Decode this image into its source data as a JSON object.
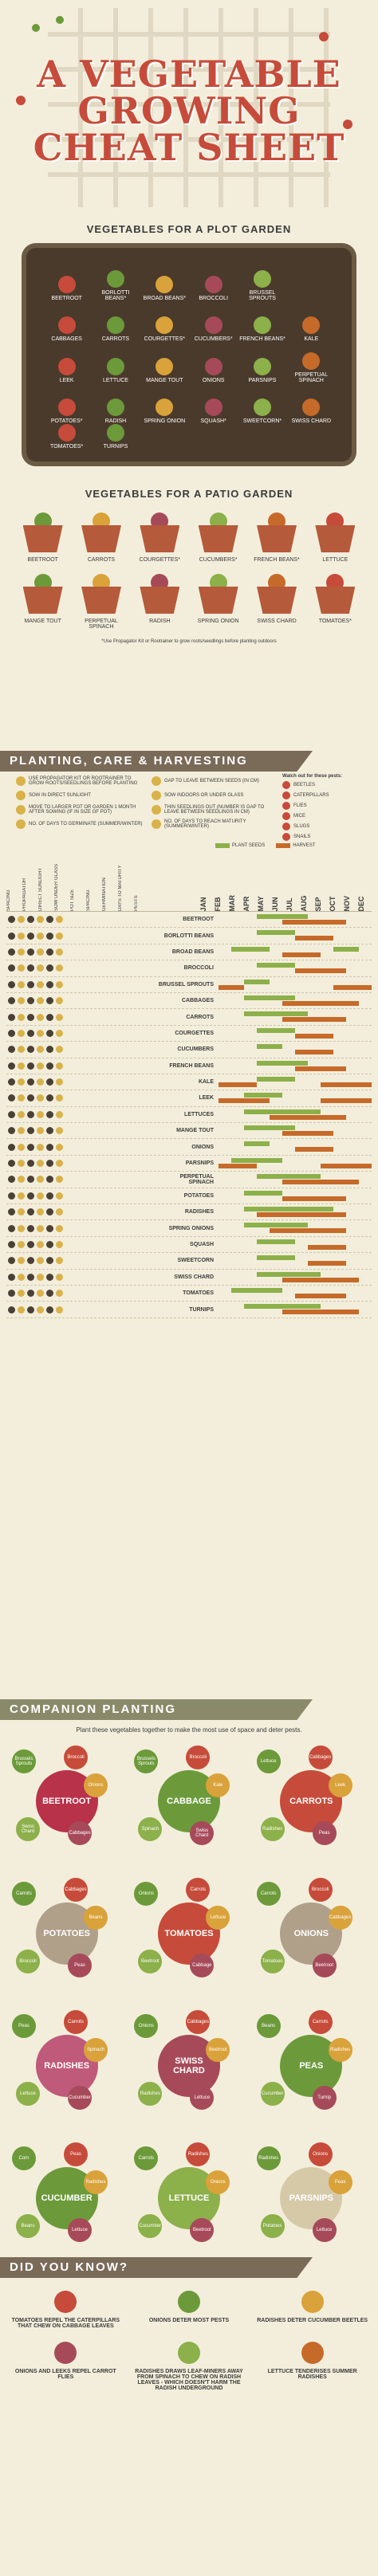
{
  "header": {
    "title_line1": "A VEGETABLE",
    "title_line2": "GROWING",
    "title_line3": "CHEAT SHEET"
  },
  "plot": {
    "title": "VEGETABLES FOR A PLOT GARDEN",
    "items": [
      "BEETROOT",
      "BORLOTTI BEANS*",
      "BROAD BEANS*",
      "BROCCOLI",
      "BRUSSEL SPROUTS",
      "",
      "CABBAGES",
      "CARROTS",
      "COURGETTES*",
      "CUCUMBERS*",
      "FRENCH BEANS*",
      "KALE",
      "LEEK",
      "LETTUCE",
      "MANGE TOUT",
      "ONIONS",
      "PARSNIPS",
      "PERPETUAL SPINACH",
      "POTATOES*",
      "RADISH",
      "SPRING ONION",
      "SQUASH*",
      "SWEETCORN*",
      "SWISS CHARD",
      "TOMATOES*",
      "TURNIPS"
    ]
  },
  "patio": {
    "title": "VEGETABLES FOR A PATIO GARDEN",
    "items": [
      "BEETROOT",
      "CARROTS",
      "COURGETTES*",
      "CUCUMBERS*",
      "FRENCH BEANS*",
      "LETTUCE",
      "MANGE TOUT",
      "PERPETUAL SPINACH",
      "RADISH",
      "SPRING ONION",
      "SWISS CHARD",
      "TOMATOES*"
    ],
    "note": "*Use Propagator Kit or Rootrainer to grow roots/seedlings before planting outdoors"
  },
  "planting": {
    "banner": "PLANTING, CARE & HARVESTING",
    "legend": [
      "USE PROPAGATOR KIT OR ROOTRAINER TO GROW ROOTS/SEEDLINGS BEFORE PLANTING",
      "GAP TO LEAVE BETWEEN SEEDS (IN CM)",
      "SOW IN DIRECT SUNLIGHT",
      "SOW INDOORS OR UNDER GLASS",
      "MOVE TO LARGER POT OR GARDEN 1 MONTH AFTER SOWING (IF IN SIZE OF POT)",
      "THIN SEEDLINGS OUT (NUMBER IS GAP TO LEAVE BETWEEN SEEDLINGS IN CM)",
      "NO. OF DAYS TO GERMINATE (SUMMER/WINTER)",
      "NO. OF DAYS TO REACH MATURITY (SUMMER/WINTER)"
    ],
    "pests_title": "Watch out for these pests:",
    "pests": [
      "BEETLES",
      "CATERPILLARS",
      "FLIES",
      "MICE",
      "SLUGS",
      "SNAILS"
    ],
    "col_headers": [
      "SPACING",
      "PROPAGATOR",
      "DIRECT SUNLIGHT",
      "SOW UNDER GLASS",
      "POT SIZE",
      "SPACING",
      "GERMINATION",
      "DAYS TO MATURITY",
      "PESTS"
    ],
    "months": [
      "JAN",
      "FEB",
      "MAR",
      "APR",
      "MAY",
      "JUN",
      "JUL",
      "AUG",
      "SEP",
      "OCT",
      "NOV",
      "DEC"
    ],
    "key_seeds": "PLANT SEEDS",
    "key_harvest": "HARVEST",
    "rows": [
      {
        "name": "BEETROOT",
        "seed": [
          [
            3,
            7
          ]
        ],
        "harv": [
          [
            5,
            10
          ]
        ]
      },
      {
        "name": "BORLOTTI BEANS",
        "seed": [
          [
            3,
            6
          ]
        ],
        "harv": [
          [
            6,
            9
          ]
        ]
      },
      {
        "name": "BROAD BEANS",
        "seed": [
          [
            1,
            4
          ],
          [
            9,
            11
          ]
        ],
        "harv": [
          [
            5,
            8
          ]
        ]
      },
      {
        "name": "BROCCOLI",
        "seed": [
          [
            3,
            6
          ]
        ],
        "harv": [
          [
            6,
            10
          ]
        ]
      },
      {
        "name": "BRUSSEL SPROUTS",
        "seed": [
          [
            2,
            4
          ]
        ],
        "harv": [
          [
            0,
            2
          ],
          [
            9,
            12
          ]
        ]
      },
      {
        "name": "CABBAGES",
        "seed": [
          [
            2,
            6
          ]
        ],
        "harv": [
          [
            5,
            11
          ]
        ]
      },
      {
        "name": "CARROTS",
        "seed": [
          [
            2,
            7
          ]
        ],
        "harv": [
          [
            5,
            10
          ]
        ]
      },
      {
        "name": "COURGETTES",
        "seed": [
          [
            3,
            6
          ]
        ],
        "harv": [
          [
            6,
            9
          ]
        ]
      },
      {
        "name": "CUCUMBERS",
        "seed": [
          [
            3,
            5
          ]
        ],
        "harv": [
          [
            6,
            9
          ]
        ]
      },
      {
        "name": "FRENCH BEANS",
        "seed": [
          [
            3,
            7
          ]
        ],
        "harv": [
          [
            6,
            10
          ]
        ]
      },
      {
        "name": "KALE",
        "seed": [
          [
            3,
            6
          ]
        ],
        "harv": [
          [
            0,
            3
          ],
          [
            8,
            12
          ]
        ]
      },
      {
        "name": "LEEK",
        "seed": [
          [
            2,
            5
          ]
        ],
        "harv": [
          [
            0,
            4
          ],
          [
            8,
            12
          ]
        ]
      },
      {
        "name": "LETTUCES",
        "seed": [
          [
            2,
            8
          ]
        ],
        "harv": [
          [
            4,
            10
          ]
        ]
      },
      {
        "name": "MANGE TOUT",
        "seed": [
          [
            2,
            6
          ]
        ],
        "harv": [
          [
            5,
            9
          ]
        ]
      },
      {
        "name": "ONIONS",
        "seed": [
          [
            2,
            4
          ]
        ],
        "harv": [
          [
            6,
            9
          ]
        ]
      },
      {
        "name": "PARSNIPS",
        "seed": [
          [
            1,
            5
          ]
        ],
        "harv": [
          [
            0,
            3
          ],
          [
            8,
            12
          ]
        ]
      },
      {
        "name": "PERPETUAL SPINACH",
        "seed": [
          [
            3,
            8
          ]
        ],
        "harv": [
          [
            5,
            11
          ]
        ]
      },
      {
        "name": "POTATOES",
        "seed": [
          [
            2,
            5
          ]
        ],
        "harv": [
          [
            5,
            10
          ]
        ]
      },
      {
        "name": "RADISHES",
        "seed": [
          [
            2,
            9
          ]
        ],
        "harv": [
          [
            3,
            10
          ]
        ]
      },
      {
        "name": "SPRING ONIONS",
        "seed": [
          [
            2,
            7
          ]
        ],
        "harv": [
          [
            4,
            10
          ]
        ]
      },
      {
        "name": "SQUASH",
        "seed": [
          [
            3,
            6
          ]
        ],
        "harv": [
          [
            7,
            10
          ]
        ]
      },
      {
        "name": "SWEETCORN",
        "seed": [
          [
            3,
            6
          ]
        ],
        "harv": [
          [
            7,
            10
          ]
        ]
      },
      {
        "name": "SWISS CHARD",
        "seed": [
          [
            3,
            8
          ]
        ],
        "harv": [
          [
            5,
            11
          ]
        ]
      },
      {
        "name": "TOMATOES",
        "seed": [
          [
            1,
            5
          ]
        ],
        "harv": [
          [
            6,
            10
          ]
        ]
      },
      {
        "name": "TURNIPS",
        "seed": [
          [
            2,
            8
          ]
        ],
        "harv": [
          [
            5,
            11
          ]
        ]
      }
    ]
  },
  "companion": {
    "banner": "COMPANION PLANTING",
    "subtitle": "Plant these vegetables together to make the most use of space and deter pests.",
    "groups": [
      {
        "center": "BEETROOT",
        "color": "#b8324a",
        "sats": [
          "Brussels Sprouts",
          "Broccoli",
          "Onions",
          "Cabbages",
          "Swiss Chard"
        ]
      },
      {
        "center": "CABBAGE",
        "color": "#6c9a3a",
        "sats": [
          "Brussels Sprouts",
          "Broccoli",
          "Kale",
          "Swiss Chard",
          "Spinach"
        ]
      },
      {
        "center": "CARROTS",
        "color": "#c74b3a",
        "sats": [
          "Lettuce",
          "Cabbages",
          "Leek",
          "Peas",
          "Radishes"
        ]
      },
      {
        "center": "POTATOES",
        "color": "#b0a08a",
        "sats": [
          "Carrots",
          "Cabbages",
          "Beans",
          "Peas",
          "Broccoli"
        ]
      },
      {
        "center": "TOMATOES",
        "color": "#c74b3a",
        "sats": [
          "Onions",
          "Carrots",
          "Lettuce",
          "Cabbage",
          "Beetroot"
        ]
      },
      {
        "center": "ONIONS",
        "color": "#b0a08a",
        "sats": [
          "Carrots",
          "Broccoli",
          "Cabbages",
          "Beetroot",
          "Tomatoes"
        ]
      },
      {
        "center": "RADISHES",
        "color": "#c05a7a",
        "sats": [
          "Peas",
          "Carrots",
          "Spinach",
          "Cucumber",
          "Lettuce"
        ]
      },
      {
        "center": "SWISS CHARD",
        "color": "#a64a5a",
        "sats": [
          "Onions",
          "Cabbages",
          "Beetroot",
          "Lettuce",
          "Radishes"
        ]
      },
      {
        "center": "PEAS",
        "color": "#6c9a3a",
        "sats": [
          "Beans",
          "Carrots",
          "Radishes",
          "Turnip",
          "Cucumber"
        ]
      },
      {
        "center": "CUCUMBER",
        "color": "#6c9a3a",
        "sats": [
          "Corn",
          "Peas",
          "Radishes",
          "Lettuce",
          "Beans"
        ]
      },
      {
        "center": "LETTUCE",
        "color": "#8cb04a",
        "sats": [
          "Carrots",
          "Radishes",
          "Onions",
          "Beetroot",
          "Cucumber"
        ]
      },
      {
        "center": "PARSNIPS",
        "color": "#d6c9a8",
        "sats": [
          "Radishes",
          "Onions",
          "Peas",
          "Lettuce",
          "Potatoes"
        ]
      }
    ]
  },
  "dyk": {
    "banner": "DID YOU KNOW?",
    "facts": [
      "TOMATOES REPEL THE CATERPILLARS THAT CHEW ON CABBAGE LEAVES",
      "ONIONS DETER MOST PESTS",
      "RADISHES DETER CUCUMBER BEETLES",
      "ONIONS AND LEEKS REPEL CARROT FLIES",
      "RADISHES DRAWS LEAF-MINERS AWAY FROM SPINACH TO CHEW ON RADISH LEAVES - WHICH DOESN'T HARM THE RADISH UNDERGROUND",
      "LETTUCE TENDERISES SUMMER RADISHES"
    ]
  }
}
